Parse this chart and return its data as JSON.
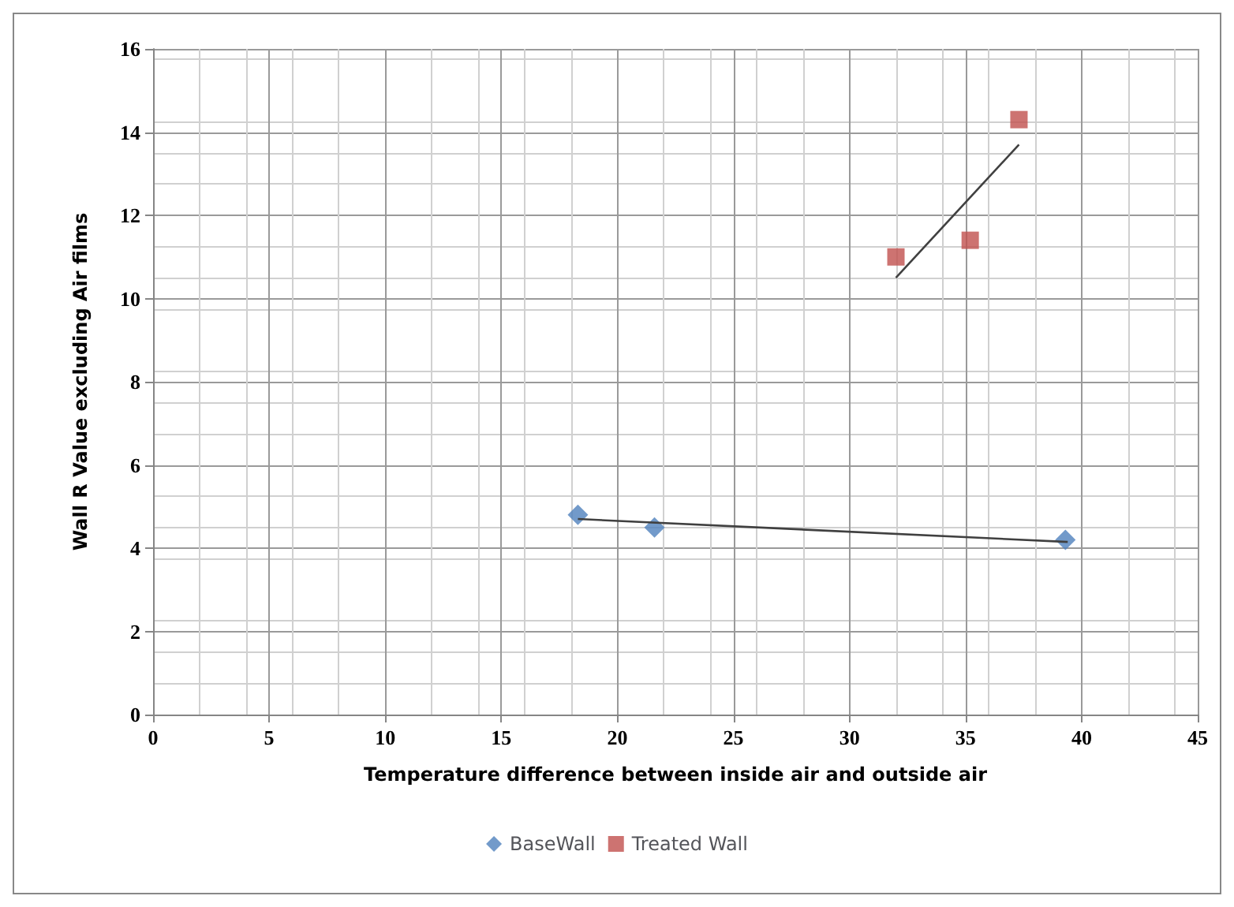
{
  "chart_data": {
    "type": "scatter",
    "xlabel": "Temperature difference between inside air and outside air",
    "ylabel": "Wall R Value excluding Air films",
    "xlim": [
      0,
      45
    ],
    "xticks": [
      0,
      5,
      10,
      15,
      20,
      25,
      30,
      35,
      40,
      45
    ],
    "ylim": [
      0,
      16
    ],
    "yticks": [
      0,
      2,
      4,
      6,
      8,
      10,
      12,
      14,
      16
    ],
    "grid": true,
    "legend": "bottom",
    "series": [
      {
        "name": "BaseWall",
        "color": "#4f81bd",
        "marker": "diamond",
        "x": [
          18.3,
          21.6,
          39.3
        ],
        "values": [
          4.8,
          4.5,
          4.2
        ]
      },
      {
        "name": "Treated Wall",
        "color": "#c0504d",
        "marker": "square",
        "x": [
          32.0,
          35.2,
          37.3
        ],
        "values": [
          11.0,
          11.4,
          14.3
        ]
      },
      {
        "type": "line",
        "color": "#404040",
        "marker": "none",
        "x": [
          18.3,
          39.4
        ],
        "values": [
          4.7,
          4.15
        ]
      },
      {
        "type": "line",
        "color": "#404040",
        "marker": "none",
        "x": [
          32.0,
          37.3
        ],
        "values": [
          10.5,
          13.7
        ]
      }
    ]
  }
}
